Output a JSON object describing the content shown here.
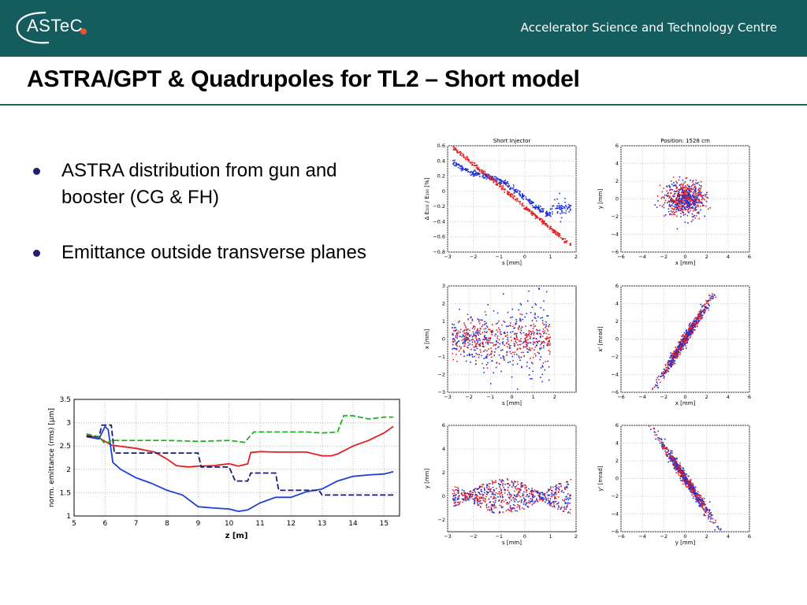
{
  "header": {
    "logo_text": "ASTeC",
    "tagline": "Accelerator Science and Technology Centre",
    "colors": {
      "bar": "#155c5e",
      "logo_dot": "#e2542b"
    }
  },
  "slide": {
    "title": "ASTRA/GPT & Quadrupoles for TL2 – Short model",
    "bullets": [
      "ASTRA distribution from gun and booster (CG & FH)",
      "Emittance outside transverse planes"
    ]
  },
  "emittance_plot": {
    "xlabel": "z [m]",
    "ylabel": "norm. emittance (rms) [μm]",
    "xticks": [
      "5",
      "6",
      "7",
      "8",
      "9",
      "10",
      "11",
      "12",
      "13",
      "14",
      "15"
    ],
    "yticks": [
      "1",
      "1.5",
      "2",
      "2.5",
      "3",
      "3.5"
    ]
  },
  "phase_plots": {
    "p1": {
      "title": "Short Injector",
      "xlabel": "s [mm]",
      "ylabel": "Δ E₁₀₀ / E₁₀₀ [%]",
      "xticks": [
        "−3",
        "−2",
        "−1",
        "0",
        "1",
        "2"
      ],
      "yticks": [
        "−0.8",
        "−0.6",
        "−0.4",
        "−0.2",
        "0",
        "0.2",
        "0.4",
        "0.6"
      ]
    },
    "p2": {
      "title": "Position: 1528 cm",
      "xlabel": "x [mm]",
      "ylabel": "y [mm]",
      "xticks": [
        "−6",
        "−4",
        "−2",
        "0",
        "2",
        "4",
        "6"
      ],
      "yticks": [
        "−6",
        "−4",
        "−2",
        "0",
        "2",
        "4",
        "6"
      ]
    },
    "p3": {
      "title": "",
      "xlabel": "s [mm]",
      "ylabel": "x [mm]",
      "xticks": [
        "−3",
        "−2",
        "−1",
        "0",
        "1",
        "2"
      ],
      "yticks": [
        "−3",
        "−2",
        "−1",
        "0",
        "1",
        "2",
        "3"
      ]
    },
    "p4": {
      "title": "",
      "xlabel": "x [mm]",
      "ylabel": "x' [mrad]",
      "xticks": [
        "−6",
        "−4",
        "−2",
        "0",
        "2",
        "4",
        "6"
      ],
      "yticks": [
        "−6",
        "−4",
        "−2",
        "0",
        "2",
        "4",
        "6"
      ]
    },
    "p5": {
      "title": "",
      "xlabel": "s [mm]",
      "ylabel": "y [mm]",
      "xticks": [
        "−3",
        "−2",
        "−1",
        "0",
        "1",
        "2"
      ],
      "yticks": [
        "−2",
        "0",
        "2",
        "4",
        "6"
      ]
    },
    "p6": {
      "title": "",
      "xlabel": "y [mm]",
      "ylabel": "y' [mrad]",
      "xticks": [
        "−6",
        "−4",
        "−2",
        "0",
        "2",
        "4",
        "6"
      ],
      "yticks": [
        "−6",
        "−4",
        "−2",
        "0",
        "2",
        "4",
        "6"
      ]
    }
  },
  "chart_data": [
    {
      "type": "line",
      "xlabel": "z [m]",
      "ylabel": "norm. emittance (rms) [μm]",
      "xlim": [
        5,
        15.5
      ],
      "ylim": [
        1,
        3.5
      ],
      "grid": true,
      "series": [
        {
          "color": "#e02020",
          "style": "solid",
          "x": [
            5.4,
            5.8,
            6.2,
            7.0,
            7.6,
            8.0,
            8.3,
            8.7,
            9.0,
            9.5,
            10.0,
            10.3,
            10.6,
            10.7,
            11.0,
            11.5,
            12.0,
            12.5,
            13.0,
            13.3,
            13.5,
            14.0,
            14.5,
            15.0,
            15.3
          ],
          "y": [
            2.73,
            2.68,
            2.52,
            2.45,
            2.37,
            2.22,
            2.08,
            2.05,
            2.07,
            2.08,
            2.12,
            2.07,
            2.12,
            2.36,
            2.38,
            2.37,
            2.37,
            2.37,
            2.29,
            2.29,
            2.33,
            2.5,
            2.62,
            2.78,
            2.92
          ]
        },
        {
          "color": "#1f3fd6",
          "style": "solid",
          "x": [
            5.4,
            5.8,
            6.0,
            6.1,
            6.25,
            6.5,
            7.0,
            7.5,
            8.0,
            8.5,
            9.0,
            9.5,
            10.0,
            10.3,
            10.6,
            11.0,
            11.5,
            12.0,
            12.5,
            13.0,
            13.5,
            14.0,
            14.5,
            15.0,
            15.3
          ],
          "y": [
            2.7,
            2.65,
            2.92,
            2.85,
            2.15,
            2.0,
            1.82,
            1.7,
            1.55,
            1.45,
            1.2,
            1.17,
            1.15,
            1.1,
            1.13,
            1.28,
            1.4,
            1.4,
            1.52,
            1.58,
            1.75,
            1.85,
            1.88,
            1.9,
            1.95
          ]
        },
        {
          "color": "#1a1a6e",
          "style": "dashed",
          "x": [
            5.4,
            5.8,
            5.9,
            6.2,
            6.3,
            7.0,
            8.0,
            9.0,
            9.1,
            10.0,
            10.2,
            10.6,
            10.7,
            11.5,
            11.6,
            12.0,
            12.5,
            12.9,
            13.0,
            14.0,
            15.0,
            15.3
          ],
          "y": [
            2.71,
            2.7,
            2.95,
            2.95,
            2.35,
            2.35,
            2.35,
            2.35,
            2.05,
            2.05,
            1.75,
            1.75,
            1.92,
            1.92,
            1.55,
            1.55,
            1.55,
            1.55,
            1.45,
            1.45,
            1.45,
            1.45
          ]
        },
        {
          "color": "#22b022",
          "style": "dashed",
          "x": [
            5.4,
            5.8,
            6.0,
            6.2,
            7.0,
            8.0,
            9.0,
            10.0,
            10.5,
            10.8,
            11.5,
            12.0,
            12.5,
            13.0,
            13.5,
            13.7,
            14.0,
            14.5,
            15.0,
            15.3
          ],
          "y": [
            2.76,
            2.7,
            2.55,
            2.62,
            2.62,
            2.62,
            2.6,
            2.62,
            2.58,
            2.8,
            2.8,
            2.8,
            2.8,
            2.78,
            2.8,
            3.15,
            3.15,
            3.08,
            3.12,
            3.12
          ]
        }
      ]
    }
  ]
}
